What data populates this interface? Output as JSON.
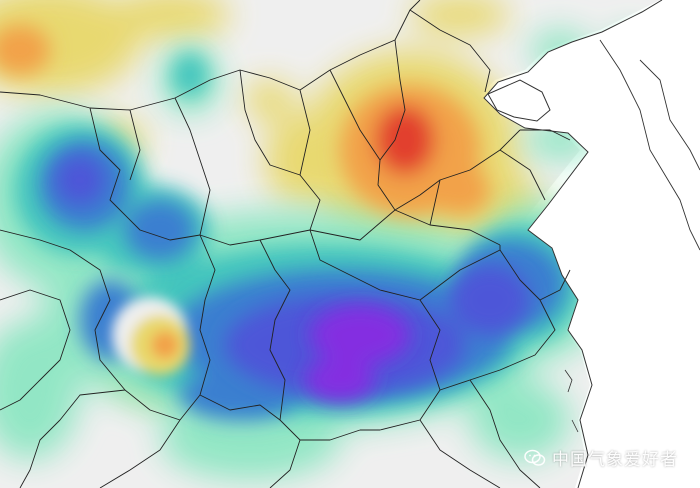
{
  "watermark": {
    "text": "中国气象爱好者",
    "icon": "wechat-icon"
  },
  "colors": {
    "land": "#efefef",
    "sea": "#ffffff",
    "yellow": "#e8d86a",
    "orange": "#f2a24a",
    "red": "#e2402f",
    "aqua": "#8ee6c3",
    "teal": "#3fc4bd",
    "blue": "#3b7fd0",
    "indigo": "#4d56d8",
    "violet": "#8a2be2",
    "boundary": "#222222"
  }
}
